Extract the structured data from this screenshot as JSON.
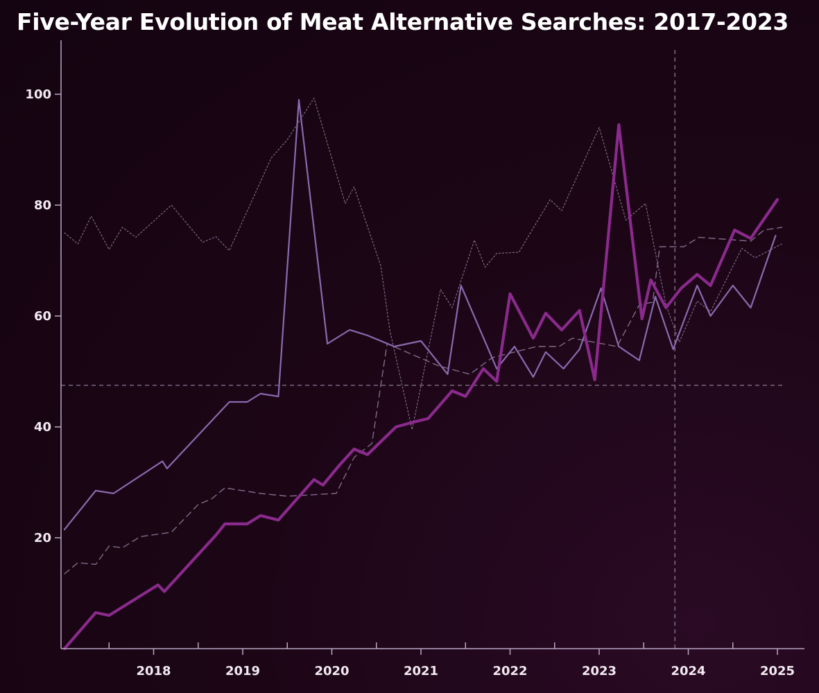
{
  "chart_data": {
    "type": "line",
    "title": "Five-Year Evolution of Meat Alternative Searches: 2017-2023",
    "xlabel": "",
    "ylabel": "",
    "xlim": [
      2017.0,
      2025.3
    ],
    "ylim": [
      0,
      108
    ],
    "x_ticks": [
      2018,
      2019,
      2020,
      2021,
      2022,
      2023,
      2024,
      2025
    ],
    "x_tick_labels": [
      "2018",
      "2019",
      "2020",
      "2021",
      "2022",
      "2023",
      "2024",
      "2025"
    ],
    "y_ticks": [
      20,
      40,
      60,
      80,
      100
    ],
    "y_tick_labels": [
      "20",
      "40",
      "60",
      "80",
      "100"
    ],
    "reference_lines": {
      "horizontal_y": 47.5,
      "vertical_x": 2023.85
    },
    "grid": false,
    "legend": "none",
    "series": [
      {
        "style": "thick",
        "color": "#8a2a8c",
        "points": [
          [
            2017.0,
            0
          ],
          [
            2017.35,
            6.5
          ],
          [
            2017.5,
            6.0
          ],
          [
            2018.05,
            11.5
          ],
          [
            2018.12,
            10.3
          ],
          [
            2018.7,
            20.5
          ],
          [
            2018.8,
            22.5
          ],
          [
            2019.05,
            22.5
          ],
          [
            2019.2,
            24
          ],
          [
            2019.4,
            23.2
          ],
          [
            2019.8,
            30.5
          ],
          [
            2019.9,
            29.5
          ],
          [
            2020.08,
            33
          ],
          [
            2020.25,
            36
          ],
          [
            2020.4,
            35
          ],
          [
            2020.72,
            40
          ],
          [
            2020.9,
            40.8
          ],
          [
            2021.08,
            41.5
          ],
          [
            2021.35,
            46.5
          ],
          [
            2021.5,
            45.5
          ],
          [
            2021.7,
            50.5
          ],
          [
            2021.85,
            48.2
          ],
          [
            2022.0,
            64
          ],
          [
            2022.26,
            56
          ],
          [
            2022.4,
            60.5
          ],
          [
            2022.58,
            57.5
          ],
          [
            2022.78,
            61
          ],
          [
            2022.95,
            48.5
          ],
          [
            2023.22,
            94.5
          ],
          [
            2023.48,
            59.5
          ],
          [
            2023.58,
            66.5
          ],
          [
            2023.75,
            61.5
          ],
          [
            2023.92,
            65
          ],
          [
            2024.1,
            67.5
          ],
          [
            2024.25,
            65.5
          ],
          [
            2024.52,
            75.5
          ],
          [
            2024.7,
            74
          ],
          [
            2025.0,
            81
          ]
        ]
      },
      {
        "style": "solid",
        "color": "#8a6ab0",
        "points": [
          [
            2017.0,
            21.5
          ],
          [
            2017.35,
            28.5
          ],
          [
            2017.55,
            28
          ],
          [
            2018.1,
            33.8
          ],
          [
            2018.15,
            32.5
          ],
          [
            2018.85,
            44.5
          ],
          [
            2019.05,
            44.5
          ],
          [
            2019.2,
            46
          ],
          [
            2019.4,
            45.5
          ],
          [
            2019.63,
            99
          ],
          [
            2019.95,
            55
          ],
          [
            2020.2,
            57.5
          ],
          [
            2020.4,
            56.5
          ],
          [
            2020.7,
            54.5
          ],
          [
            2021.0,
            55.5
          ],
          [
            2021.3,
            49.5
          ],
          [
            2021.45,
            65.5
          ],
          [
            2021.85,
            50.5
          ],
          [
            2022.05,
            54.5
          ],
          [
            2022.26,
            49
          ],
          [
            2022.4,
            53.5
          ],
          [
            2022.6,
            50.5
          ],
          [
            2022.78,
            54
          ],
          [
            2023.02,
            65
          ],
          [
            2023.22,
            54.5
          ],
          [
            2023.45,
            52
          ],
          [
            2023.63,
            63.5
          ],
          [
            2023.83,
            54
          ],
          [
            2024.1,
            65.5
          ],
          [
            2024.25,
            60
          ],
          [
            2024.5,
            65.5
          ],
          [
            2024.7,
            61.5
          ],
          [
            2024.98,
            74.5
          ]
        ]
      },
      {
        "style": "dashed",
        "color": "#a08fb0",
        "points": [
          [
            2017.0,
            13.5
          ],
          [
            2017.15,
            15.5
          ],
          [
            2017.35,
            15.2
          ],
          [
            2017.5,
            18.5
          ],
          [
            2017.65,
            18.2
          ],
          [
            2017.85,
            20.2
          ],
          [
            2018.2,
            21.0
          ],
          [
            2018.5,
            26
          ],
          [
            2018.65,
            27
          ],
          [
            2018.8,
            29
          ],
          [
            2019.2,
            28
          ],
          [
            2019.5,
            27.5
          ],
          [
            2020.05,
            28
          ],
          [
            2020.25,
            34.5
          ],
          [
            2020.45,
            37
          ],
          [
            2020.62,
            55
          ],
          [
            2021.2,
            51
          ],
          [
            2021.55,
            49.5
          ],
          [
            2021.8,
            52.5
          ],
          [
            2022.3,
            54.5
          ],
          [
            2022.55,
            54.5
          ],
          [
            2022.7,
            56
          ],
          [
            2023.2,
            54.5
          ],
          [
            2023.45,
            62
          ],
          [
            2023.6,
            62.5
          ],
          [
            2023.68,
            72.5
          ],
          [
            2023.95,
            72.5
          ],
          [
            2024.12,
            74.2
          ],
          [
            2024.7,
            73.5
          ],
          [
            2024.85,
            75.5
          ],
          [
            2025.05,
            76
          ]
        ]
      },
      {
        "style": "dotted",
        "color": "#a08fb0",
        "points": [
          [
            2017.0,
            75
          ],
          [
            2017.15,
            73
          ],
          [
            2017.3,
            78
          ],
          [
            2017.5,
            72
          ],
          [
            2017.65,
            76
          ],
          [
            2017.8,
            74.2
          ],
          [
            2018.2,
            80
          ],
          [
            2018.55,
            73.3
          ],
          [
            2018.7,
            74.3
          ],
          [
            2018.85,
            71.8
          ],
          [
            2019.32,
            88.5
          ],
          [
            2019.5,
            91.8
          ],
          [
            2019.8,
            99.3
          ],
          [
            2020.15,
            80.3
          ],
          [
            2020.25,
            83.3
          ],
          [
            2020.55,
            69
          ],
          [
            2020.65,
            57.5
          ],
          [
            2020.9,
            39.5
          ],
          [
            2021.22,
            64.8
          ],
          [
            2021.35,
            61.5
          ],
          [
            2021.6,
            73.7
          ],
          [
            2021.72,
            68.8
          ],
          [
            2021.85,
            71.3
          ],
          [
            2022.1,
            71.5
          ],
          [
            2022.45,
            81
          ],
          [
            2022.58,
            79
          ],
          [
            2023.0,
            94
          ],
          [
            2023.3,
            77.3
          ],
          [
            2023.52,
            80.3
          ],
          [
            2023.75,
            62
          ],
          [
            2023.9,
            55.3
          ],
          [
            2024.1,
            62.7
          ],
          [
            2024.25,
            60.8
          ],
          [
            2024.6,
            72.2
          ],
          [
            2024.75,
            70.5
          ],
          [
            2025.05,
            73
          ]
        ]
      }
    ]
  }
}
